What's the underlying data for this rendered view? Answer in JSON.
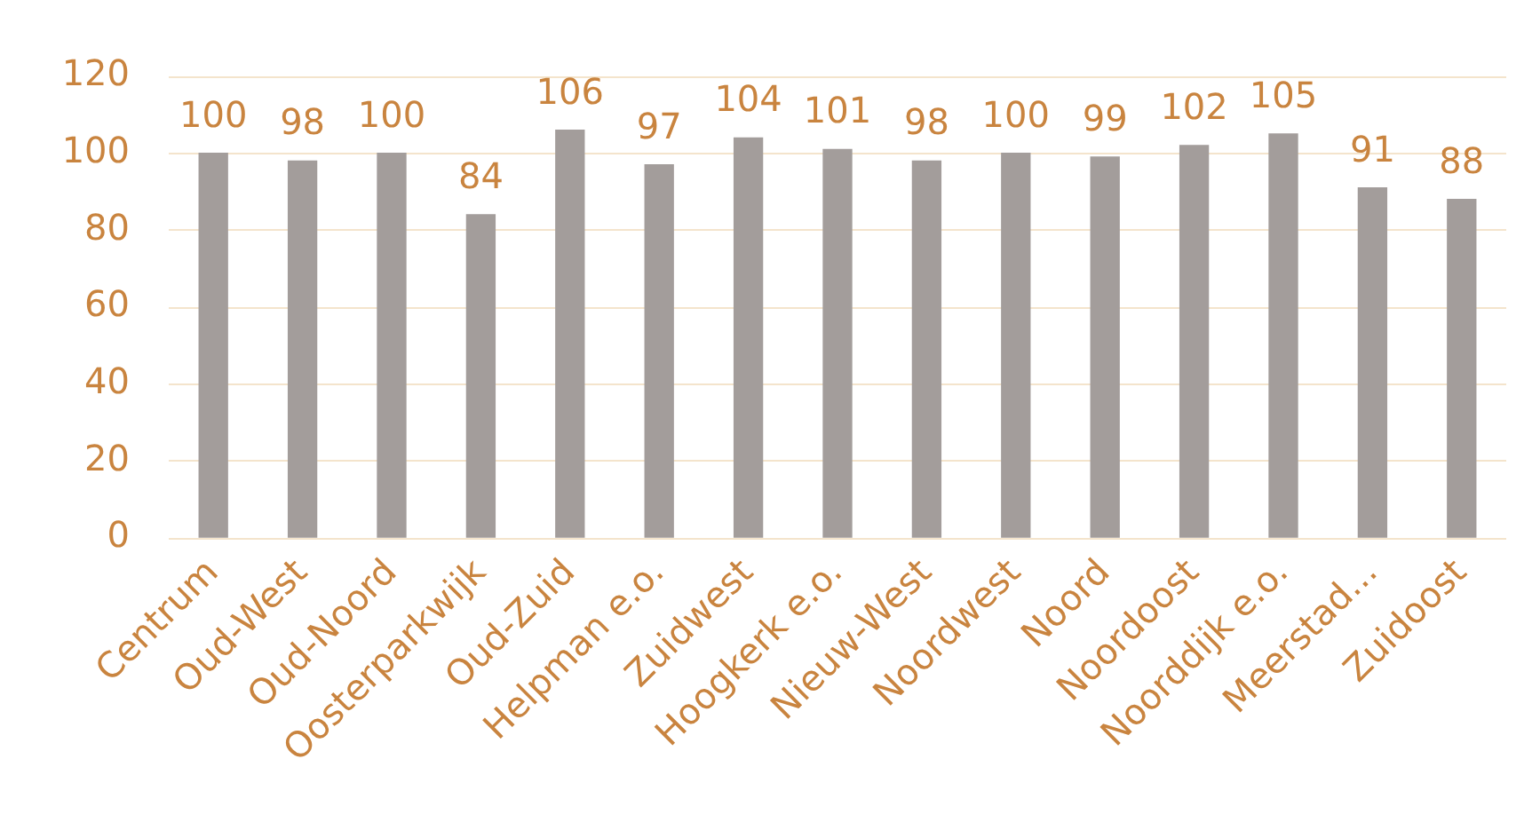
{
  "chart_data": {
    "type": "bar",
    "categories": [
      "Centrum",
      "Oud-West",
      "Oud-Noord",
      "Oosterparkwijk",
      "Oud-Zuid",
      "Helpman e.o.",
      "Zuidwest",
      "Hoogkerk e.o.",
      "Nieuw-West",
      "Noordwest",
      "Noord",
      "Noordoost",
      "Noorddijk e.o.",
      "Meerstad...",
      "Zuidoost"
    ],
    "values": [
      100,
      98,
      100,
      84,
      106,
      97,
      104,
      101,
      98,
      100,
      99,
      102,
      105,
      91,
      88
    ],
    "color": "#a39d9b",
    "ylim": [
      0,
      120
    ],
    "yticks": [
      0,
      20,
      40,
      60,
      80,
      100,
      120
    ],
    "grid": "y",
    "data_labels": true
  }
}
